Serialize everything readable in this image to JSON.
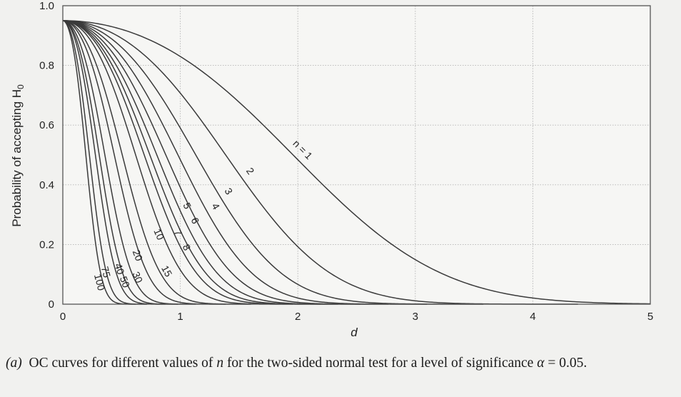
{
  "chart_data": {
    "type": "line",
    "title": "",
    "xlabel": "d",
    "ylabel": "Probability of accepting H",
    "ylabel_subscript": "0",
    "xlim": [
      0,
      5
    ],
    "ylim": [
      0,
      1
    ],
    "xticks": [
      "0",
      "1",
      "2",
      "3",
      "4",
      "5"
    ],
    "yticks": [
      "0",
      "0.2",
      "0.4",
      "0.6",
      "0.8",
      "1.0"
    ],
    "grid": true,
    "legend": "none",
    "alpha": 0.05,
    "series_labels": [
      "n = 1",
      "2",
      "3",
      "4",
      "5",
      "6",
      "7",
      "8",
      "10",
      "15",
      "20",
      "30",
      "40",
      "50",
      "75",
      "100"
    ],
    "series": [
      {
        "name": "n = 1",
        "n": 1,
        "x": [
          0,
          0.5,
          1,
          1.5,
          2,
          2.5,
          3,
          3.5,
          4,
          4.5,
          5
        ],
        "values": [
          0.95,
          0.92,
          0.83,
          0.68,
          0.48,
          0.29,
          0.15,
          0.06,
          0.02,
          0.005,
          0.001
        ]
      },
      {
        "name": "2",
        "n": 2,
        "x": [
          0,
          0.5,
          1,
          1.5,
          2,
          2.5,
          3,
          3.5
        ],
        "values": [
          0.95,
          0.89,
          0.71,
          0.44,
          0.19,
          0.05,
          0.01,
          0.001
        ]
      },
      {
        "name": "3",
        "n": 3,
        "x": [
          0,
          0.5,
          1,
          1.5,
          2,
          2.5,
          3
        ],
        "values": [
          0.95,
          0.86,
          0.59,
          0.26,
          0.06,
          0.008,
          0.0005
        ]
      },
      {
        "name": "4",
        "n": 4,
        "x": [
          0,
          0.5,
          1,
          1.5,
          2,
          2.5
        ],
        "values": [
          0.95,
          0.83,
          0.48,
          0.15,
          0.02,
          0.001
        ]
      },
      {
        "name": "5",
        "n": 5,
        "x": [
          0,
          0.5,
          1,
          1.5,
          2,
          2.5
        ],
        "values": [
          0.95,
          0.8,
          0.39,
          0.08,
          0.005,
          0.0001
        ]
      },
      {
        "name": "6",
        "n": 6,
        "x": [
          0,
          0.5,
          1,
          1.5,
          2
        ],
        "values": [
          0.95,
          0.77,
          0.31,
          0.04,
          0.001
        ]
      },
      {
        "name": "7",
        "n": 7,
        "x": [
          0,
          0.5,
          1,
          1.5,
          2
        ],
        "values": [
          0.95,
          0.74,
          0.25,
          0.02,
          0.0003
        ]
      },
      {
        "name": "8",
        "n": 8,
        "x": [
          0,
          0.5,
          1,
          1.5
        ],
        "values": [
          0.95,
          0.71,
          0.19,
          0.01
        ]
      },
      {
        "name": "10",
        "n": 10,
        "x": [
          0,
          0.5,
          1,
          1.5
        ],
        "values": [
          0.95,
          0.65,
          0.11,
          0.002
        ]
      },
      {
        "name": "15",
        "n": 15,
        "x": [
          0,
          0.5,
          1,
          1.5
        ],
        "values": [
          0.95,
          0.52,
          0.03,
          0.0001
        ]
      },
      {
        "name": "20",
        "n": 20,
        "x": [
          0,
          0.5,
          1
        ],
        "values": [
          0.95,
          0.39,
          0.006
        ]
      },
      {
        "name": "30",
        "n": 30,
        "x": [
          0,
          0.5,
          1
        ],
        "values": [
          0.95,
          0.21,
          0.0002
        ]
      },
      {
        "name": "40",
        "n": 40,
        "x": [
          0,
          0.5,
          1
        ],
        "values": [
          0.95,
          0.11,
          0.0001
        ]
      },
      {
        "name": "50",
        "n": 50,
        "x": [
          0,
          0.5,
          1
        ],
        "values": [
          0.95,
          0.05,
          0.0001
        ]
      },
      {
        "name": "75",
        "n": 75,
        "x": [
          0,
          0.5,
          1
        ],
        "values": [
          0.95,
          0.008,
          0.0001
        ]
      },
      {
        "name": "100",
        "n": 100,
        "x": [
          0,
          0.5,
          1
        ],
        "values": [
          0.95,
          0.001,
          0.0001
        ]
      }
    ]
  },
  "caption": {
    "part": "(a)",
    "text_1": "OC curves for different values of ",
    "n_symbol": "n",
    "text_2": " for the two-sided normal test for a level of significance ",
    "alpha_symbol": "α",
    "alpha_value": " = 0.05."
  },
  "colors": {
    "background": "#f1f1ef",
    "curve": "#3a3a3a",
    "grid": "#b4b4b4",
    "frame": "#555555"
  }
}
